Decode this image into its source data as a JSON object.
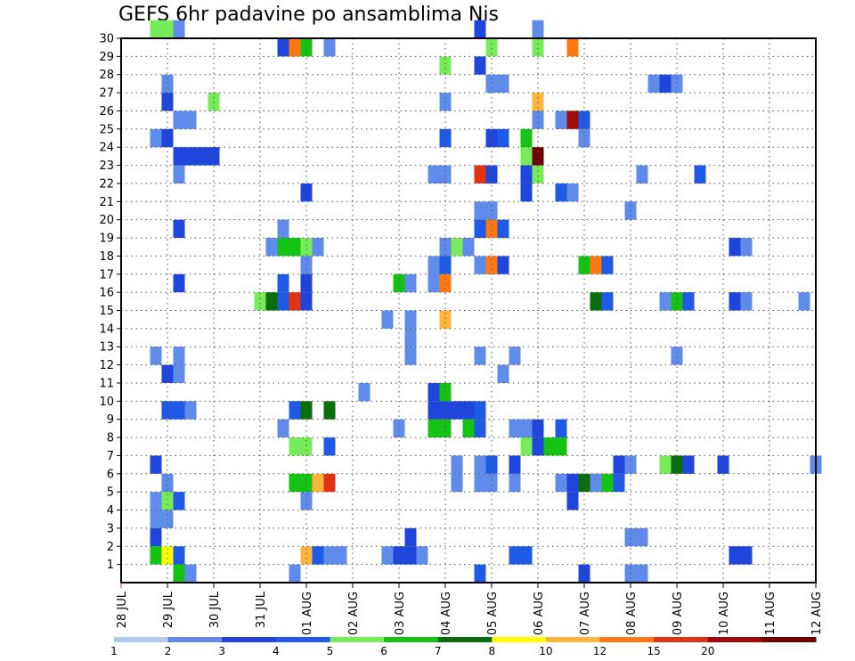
{
  "chart_data": {
    "type": "heatmap",
    "title": "GEFS 6hr padavine po ansamblima Nis",
    "xlabel": "",
    "ylabel": "",
    "x_tick_labels": [
      "28 JUL",
      "29 JUL",
      "30 JUL",
      "31 JUL",
      "01 AUG",
      "02 AUG",
      "03 AUG",
      "04 AUG",
      "05 AUG",
      "06 AUG",
      "07 AUG",
      "08 AUG",
      "09 AUG",
      "10 AUG",
      "11 AUG",
      "12 AUG"
    ],
    "y_tick_labels": [
      "1",
      "2",
      "3",
      "4",
      "5",
      "6",
      "7",
      "8",
      "9",
      "10",
      "11",
      "12",
      "13",
      "14",
      "15",
      "16",
      "17",
      "18",
      "19",
      "20",
      "21",
      "22",
      "23",
      "24",
      "25",
      "26",
      "27",
      "28",
      "29",
      "30"
    ],
    "x_range_steps": [
      0,
      60
    ],
    "y_range": [
      0,
      30
    ],
    "time_step_hours": 6,
    "grid": true,
    "colorbar": {
      "levels": [
        "1",
        "2",
        "3",
        "4",
        "5",
        "6",
        "7",
        "8",
        "10",
        "12",
        "15",
        "20"
      ],
      "colors": [
        "#b4c8f0",
        "#5f8ceb",
        "#1e46dc",
        "#1e5ae6",
        "#78eb5a",
        "#14c314",
        "#0a6e0a",
        "#ffff00",
        "#ffb43c",
        "#ff7814",
        "#e13214",
        "#a00a0a",
        "#6e0000"
      ]
    },
    "cells": [
      {
        "step": 3,
        "member": 30,
        "value": 4
      },
      {
        "step": 4,
        "member": 30,
        "value": 4
      },
      {
        "step": 5,
        "member": 30,
        "value": 1
      },
      {
        "step": 31,
        "member": 30,
        "value": 2
      },
      {
        "step": 36,
        "member": 30,
        "value": 1
      },
      {
        "step": 14,
        "member": 29,
        "value": 2
      },
      {
        "step": 15,
        "member": 29,
        "value": 10
      },
      {
        "step": 16,
        "member": 29,
        "value": 5
      },
      {
        "step": 18,
        "member": 29,
        "value": 1
      },
      {
        "step": 32,
        "member": 29,
        "value": 4
      },
      {
        "step": 36,
        "member": 29,
        "value": 4
      },
      {
        "step": 39,
        "member": 29,
        "value": 10
      },
      {
        "step": 28,
        "member": 28,
        "value": 4
      },
      {
        "step": 31,
        "member": 28,
        "value": 2
      },
      {
        "step": 4,
        "member": 27,
        "value": 1
      },
      {
        "step": 32,
        "member": 27,
        "value": 1
      },
      {
        "step": 33,
        "member": 27,
        "value": 1
      },
      {
        "step": 46,
        "member": 27,
        "value": 1
      },
      {
        "step": 47,
        "member": 27,
        "value": 2
      },
      {
        "step": 48,
        "member": 27,
        "value": 1
      },
      {
        "step": 4,
        "member": 26,
        "value": 2
      },
      {
        "step": 8,
        "member": 26,
        "value": 4
      },
      {
        "step": 28,
        "member": 26,
        "value": 1
      },
      {
        "step": 36,
        "member": 26,
        "value": 8
      },
      {
        "step": 5,
        "member": 25,
        "value": 1
      },
      {
        "step": 6,
        "member": 25,
        "value": 1
      },
      {
        "step": 36,
        "member": 25,
        "value": 1
      },
      {
        "step": 38,
        "member": 25,
        "value": 1
      },
      {
        "step": 39,
        "member": 25,
        "value": 15
      },
      {
        "step": 40,
        "member": 25,
        "value": 3
      },
      {
        "step": 3,
        "member": 24,
        "value": 1
      },
      {
        "step": 4,
        "member": 24,
        "value": 2
      },
      {
        "step": 28,
        "member": 24,
        "value": 3
      },
      {
        "step": 32,
        "member": 24,
        "value": 2
      },
      {
        "step": 33,
        "member": 24,
        "value": 3
      },
      {
        "step": 35,
        "member": 24,
        "value": 5
      },
      {
        "step": 40,
        "member": 24,
        "value": 1
      },
      {
        "step": 5,
        "member": 23,
        "value": 2
      },
      {
        "step": 6,
        "member": 23,
        "value": 2
      },
      {
        "step": 7,
        "member": 23,
        "value": 2
      },
      {
        "step": 8,
        "member": 23,
        "value": 2
      },
      {
        "step": 35,
        "member": 23,
        "value": 4
      },
      {
        "step": 36,
        "member": 23,
        "value": 20
      },
      {
        "step": 5,
        "member": 22,
        "value": 1
      },
      {
        "step": 27,
        "member": 22,
        "value": 1
      },
      {
        "step": 28,
        "member": 22,
        "value": 1
      },
      {
        "step": 31,
        "member": 22,
        "value": 12
      },
      {
        "step": 32,
        "member": 22,
        "value": 2
      },
      {
        "step": 35,
        "member": 22,
        "value": 2
      },
      {
        "step": 36,
        "member": 22,
        "value": 4
      },
      {
        "step": 45,
        "member": 22,
        "value": 1
      },
      {
        "step": 50,
        "member": 22,
        "value": 3
      },
      {
        "step": 16,
        "member": 21,
        "value": 2
      },
      {
        "step": 35,
        "member": 21,
        "value": 2
      },
      {
        "step": 38,
        "member": 21,
        "value": 3
      },
      {
        "step": 39,
        "member": 21,
        "value": 1
      },
      {
        "step": 31,
        "member": 20,
        "value": 1
      },
      {
        "step": 32,
        "member": 20,
        "value": 1
      },
      {
        "step": 44,
        "member": 20,
        "value": 1
      },
      {
        "step": 5,
        "member": 19,
        "value": 2
      },
      {
        "step": 14,
        "member": 19,
        "value": 1
      },
      {
        "step": 31,
        "member": 19,
        "value": 3
      },
      {
        "step": 32,
        "member": 19,
        "value": 10
      },
      {
        "step": 33,
        "member": 19,
        "value": 3
      },
      {
        "step": 13,
        "member": 18,
        "value": 1
      },
      {
        "step": 14,
        "member": 18,
        "value": 5
      },
      {
        "step": 15,
        "member": 18,
        "value": 5
      },
      {
        "step": 16,
        "member": 18,
        "value": 4
      },
      {
        "step": 17,
        "member": 18,
        "value": 1
      },
      {
        "step": 28,
        "member": 18,
        "value": 1
      },
      {
        "step": 29,
        "member": 18,
        "value": 4
      },
      {
        "step": 30,
        "member": 18,
        "value": 1
      },
      {
        "step": 53,
        "member": 18,
        "value": 2
      },
      {
        "step": 54,
        "member": 18,
        "value": 1
      },
      {
        "step": 16,
        "member": 17,
        "value": 1
      },
      {
        "step": 27,
        "member": 17,
        "value": 1
      },
      {
        "step": 28,
        "member": 17,
        "value": 3
      },
      {
        "step": 31,
        "member": 17,
        "value": 1
      },
      {
        "step": 32,
        "member": 17,
        "value": 10
      },
      {
        "step": 33,
        "member": 17,
        "value": 2
      },
      {
        "step": 40,
        "member": 17,
        "value": 5
      },
      {
        "step": 41,
        "member": 17,
        "value": 10
      },
      {
        "step": 42,
        "member": 17,
        "value": 3
      },
      {
        "step": 5,
        "member": 16,
        "value": 2
      },
      {
        "step": 14,
        "member": 16,
        "value": 3
      },
      {
        "step": 16,
        "member": 16,
        "value": 2
      },
      {
        "step": 24,
        "member": 16,
        "value": 5
      },
      {
        "step": 25,
        "member": 16,
        "value": 1
      },
      {
        "step": 27,
        "member": 16,
        "value": 1
      },
      {
        "step": 28,
        "member": 16,
        "value": 10
      },
      {
        "step": 12,
        "member": 15,
        "value": 4
      },
      {
        "step": 13,
        "member": 15,
        "value": 6
      },
      {
        "step": 14,
        "member": 15,
        "value": 3
      },
      {
        "step": 15,
        "member": 15,
        "value": 12
      },
      {
        "step": 16,
        "member": 15,
        "value": 2
      },
      {
        "step": 41,
        "member": 15,
        "value": 6
      },
      {
        "step": 42,
        "member": 15,
        "value": 3
      },
      {
        "step": 47,
        "member": 15,
        "value": 1
      },
      {
        "step": 48,
        "member": 15,
        "value": 5
      },
      {
        "step": 49,
        "member": 15,
        "value": 3
      },
      {
        "step": 53,
        "member": 15,
        "value": 2
      },
      {
        "step": 54,
        "member": 15,
        "value": 1
      },
      {
        "step": 59,
        "member": 15,
        "value": 1
      },
      {
        "step": 23,
        "member": 14,
        "value": 1
      },
      {
        "step": 25,
        "member": 14,
        "value": 1
      },
      {
        "step": 28,
        "member": 14,
        "value": 8
      },
      {
        "step": 25,
        "member": 13,
        "value": 1
      },
      {
        "step": 3,
        "member": 12,
        "value": 1
      },
      {
        "step": 5,
        "member": 12,
        "value": 1
      },
      {
        "step": 25,
        "member": 12,
        "value": 1
      },
      {
        "step": 31,
        "member": 12,
        "value": 1
      },
      {
        "step": 34,
        "member": 12,
        "value": 1
      },
      {
        "step": 48,
        "member": 12,
        "value": 1
      },
      {
        "step": 4,
        "member": 11,
        "value": 2
      },
      {
        "step": 5,
        "member": 11,
        "value": 1
      },
      {
        "step": 33,
        "member": 11,
        "value": 1
      },
      {
        "step": 21,
        "member": 10,
        "value": 1
      },
      {
        "step": 27,
        "member": 10,
        "value": 2
      },
      {
        "step": 28,
        "member": 10,
        "value": 5
      },
      {
        "step": 4,
        "member": 9,
        "value": 3
      },
      {
        "step": 5,
        "member": 9,
        "value": 3
      },
      {
        "step": 6,
        "member": 9,
        "value": 1
      },
      {
        "step": 15,
        "member": 9,
        "value": 3
      },
      {
        "step": 16,
        "member": 9,
        "value": 6
      },
      {
        "step": 18,
        "member": 9,
        "value": 6
      },
      {
        "step": 27,
        "member": 9,
        "value": 2
      },
      {
        "step": 28,
        "member": 9,
        "value": 2
      },
      {
        "step": 29,
        "member": 9,
        "value": 2
      },
      {
        "step": 30,
        "member": 9,
        "value": 2
      },
      {
        "step": 31,
        "member": 9,
        "value": 3
      },
      {
        "step": 14,
        "member": 8,
        "value": 1
      },
      {
        "step": 24,
        "member": 8,
        "value": 1
      },
      {
        "step": 27,
        "member": 8,
        "value": 5
      },
      {
        "step": 28,
        "member": 8,
        "value": 5
      },
      {
        "step": 30,
        "member": 8,
        "value": 5
      },
      {
        "step": 31,
        "member": 8,
        "value": 3
      },
      {
        "step": 34,
        "member": 8,
        "value": 1
      },
      {
        "step": 35,
        "member": 8,
        "value": 1
      },
      {
        "step": 36,
        "member": 8,
        "value": 2
      },
      {
        "step": 38,
        "member": 8,
        "value": 3
      },
      {
        "step": 15,
        "member": 7,
        "value": 4
      },
      {
        "step": 16,
        "member": 7,
        "value": 4
      },
      {
        "step": 18,
        "member": 7,
        "value": 3
      },
      {
        "step": 35,
        "member": 7,
        "value": 4
      },
      {
        "step": 36,
        "member": 7,
        "value": 2
      },
      {
        "step": 37,
        "member": 7,
        "value": 5
      },
      {
        "step": 38,
        "member": 7,
        "value": 5
      },
      {
        "step": 3,
        "member": 6,
        "value": 2
      },
      {
        "step": 29,
        "member": 6,
        "value": 1
      },
      {
        "step": 31,
        "member": 6,
        "value": 1
      },
      {
        "step": 32,
        "member": 6,
        "value": 3
      },
      {
        "step": 34,
        "member": 6,
        "value": 2
      },
      {
        "step": 43,
        "member": 6,
        "value": 2
      },
      {
        "step": 44,
        "member": 6,
        "value": 1
      },
      {
        "step": 47,
        "member": 6,
        "value": 4
      },
      {
        "step": 48,
        "member": 6,
        "value": 6
      },
      {
        "step": 49,
        "member": 6,
        "value": 2
      },
      {
        "step": 52,
        "member": 6,
        "value": 2
      },
      {
        "step": 60,
        "member": 6,
        "value": 1
      },
      {
        "step": 4,
        "member": 5,
        "value": 1
      },
      {
        "step": 15,
        "member": 5,
        "value": 5
      },
      {
        "step": 16,
        "member": 5,
        "value": 5
      },
      {
        "step": 17,
        "member": 5,
        "value": 8
      },
      {
        "step": 18,
        "member": 5,
        "value": 12
      },
      {
        "step": 29,
        "member": 5,
        "value": 1
      },
      {
        "step": 31,
        "member": 5,
        "value": 1
      },
      {
        "step": 32,
        "member": 5,
        "value": 1
      },
      {
        "step": 34,
        "member": 5,
        "value": 1
      },
      {
        "step": 38,
        "member": 5,
        "value": 1
      },
      {
        "step": 39,
        "member": 5,
        "value": 2
      },
      {
        "step": 40,
        "member": 5,
        "value": 6
      },
      {
        "step": 41,
        "member": 5,
        "value": 1
      },
      {
        "step": 42,
        "member": 5,
        "value": 5
      },
      {
        "step": 43,
        "member": 5,
        "value": 3
      },
      {
        "step": 3,
        "member": 4,
        "value": 1
      },
      {
        "step": 4,
        "member": 4,
        "value": 4
      },
      {
        "step": 5,
        "member": 4,
        "value": 3
      },
      {
        "step": 16,
        "member": 4,
        "value": 1
      },
      {
        "step": 39,
        "member": 4,
        "value": 2
      },
      {
        "step": 3,
        "member": 3,
        "value": 1
      },
      {
        "step": 4,
        "member": 3,
        "value": 1
      },
      {
        "step": 3,
        "member": 2,
        "value": 2
      },
      {
        "step": 25,
        "member": 2,
        "value": 2
      },
      {
        "step": 44,
        "member": 2,
        "value": 1
      },
      {
        "step": 45,
        "member": 2,
        "value": 1
      },
      {
        "step": 3,
        "member": 1,
        "value": 5
      },
      {
        "step": 4,
        "member": 1,
        "value": 7
      },
      {
        "step": 5,
        "member": 1,
        "value": 3
      },
      {
        "step": 16,
        "member": 1,
        "value": 8
      },
      {
        "step": 17,
        "member": 1,
        "value": 3
      },
      {
        "step": 18,
        "member": 1,
        "value": 1
      },
      {
        "step": 19,
        "member": 1,
        "value": 1
      },
      {
        "step": 23,
        "member": 1,
        "value": 1
      },
      {
        "step": 24,
        "member": 1,
        "value": 2
      },
      {
        "step": 25,
        "member": 1,
        "value": 2
      },
      {
        "step": 26,
        "member": 1,
        "value": 1
      },
      {
        "step": 34,
        "member": 1,
        "value": 3
      },
      {
        "step": 35,
        "member": 1,
        "value": 3
      },
      {
        "step": 53,
        "member": 1,
        "value": 2
      },
      {
        "step": 54,
        "member": 1,
        "value": 2
      },
      {
        "step": 5,
        "member": 0,
        "value": 5
      },
      {
        "step": 6,
        "member": 0,
        "value": 1
      },
      {
        "step": 15,
        "member": 0,
        "value": 1
      },
      {
        "step": 31,
        "member": 0,
        "value": 3
      },
      {
        "step": 40,
        "member": 0,
        "value": 2
      },
      {
        "step": 44,
        "member": 0,
        "value": 1
      },
      {
        "step": 45,
        "member": 0,
        "value": 1
      }
    ]
  }
}
